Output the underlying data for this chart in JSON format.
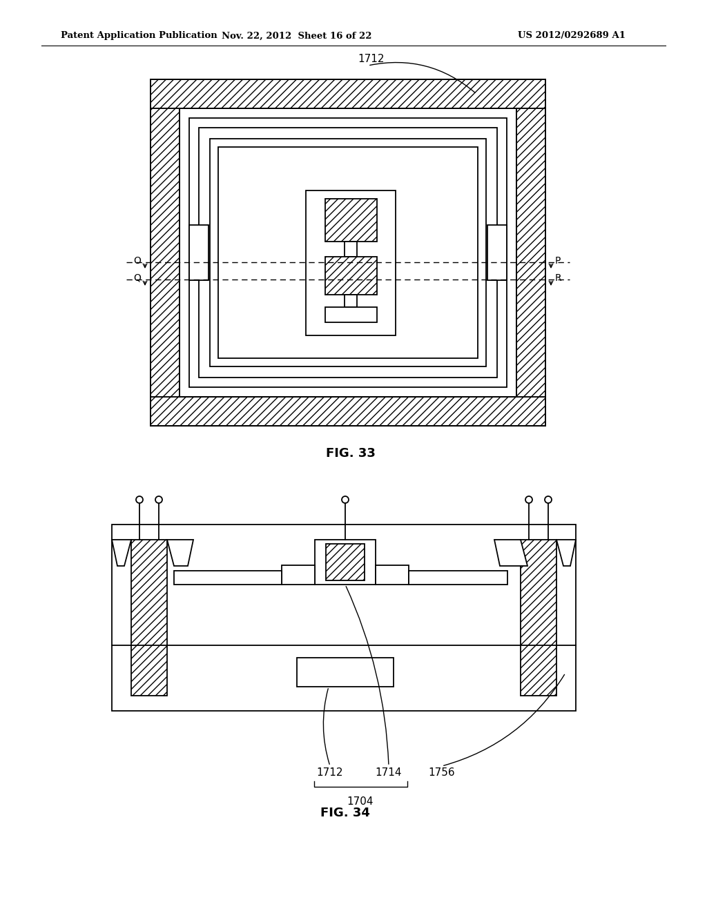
{
  "header_left": "Patent Application Publication",
  "header_mid": "Nov. 22, 2012  Sheet 16 of 22",
  "header_right": "US 2012/0292689 A1",
  "fig33_label": "FIG. 33",
  "fig34_label": "FIG. 34",
  "label_1712_fig33": "1712",
  "label_O": "O",
  "label_Q": "Q",
  "label_P": "P",
  "label_R": "R",
  "label_1712_fig34": "1712",
  "label_1714": "1714",
  "label_1756": "1756",
  "label_1704": "1704",
  "bg_color": "#ffffff",
  "line_color": "#000000"
}
